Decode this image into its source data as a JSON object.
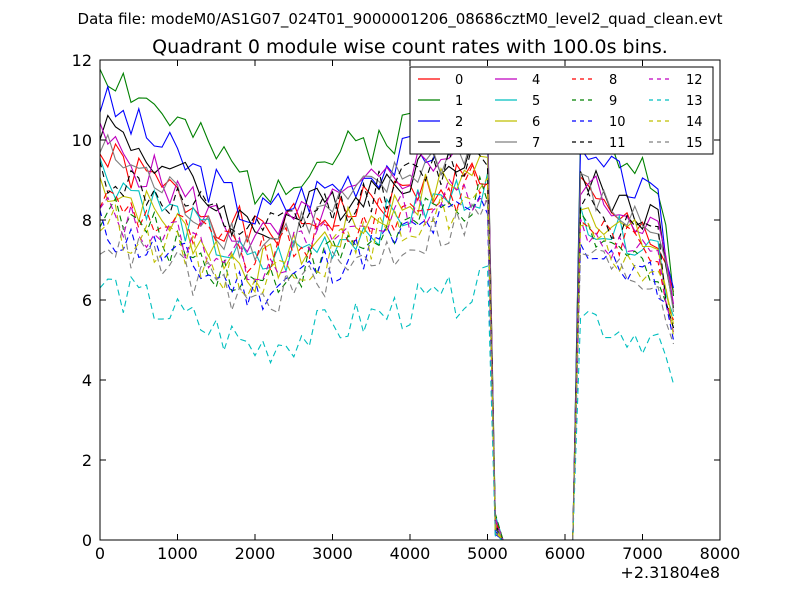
{
  "header": {
    "suptitle": "Data file: modeM0/AS1G07_024T01_9000001206_08686cztM0_level2_quad_clean.evt"
  },
  "chart_data": {
    "type": "line",
    "title": "Quadrant 0 module wise count rates with 100.0s bins.",
    "xlabel": "",
    "ylabel": "",
    "x_offset_label": "+2.31804e8",
    "xlim": [
      0,
      8000
    ],
    "ylim": [
      0,
      12
    ],
    "xticks": [
      0,
      1000,
      2000,
      3000,
      4000,
      5000,
      6000,
      7000,
      8000
    ],
    "xtick_labels": [
      "0",
      "1000",
      "2000",
      "3000",
      "4000",
      "5000",
      "6000",
      "7000",
      "8000"
    ],
    "yticks": [
      0,
      2,
      4,
      6,
      8,
      10,
      12
    ],
    "ytick_labels": [
      "0",
      "2",
      "4",
      "6",
      "8",
      "10",
      "12"
    ],
    "grid": false,
    "legend_position": "top-right",
    "legend_columns": 4,
    "segments": [
      {
        "x_start": 0,
        "x_end": 5000,
        "step": 100
      },
      {
        "x_start": 6200,
        "x_end": 7400,
        "step": 100
      }
    ],
    "drop_points": [
      5100,
      5200,
      6100
    ],
    "series": [
      {
        "name": "0",
        "color": "#ff0000",
        "dash": "solid",
        "base": 9.6,
        "mid": 7.6,
        "end": 9.2,
        "seg2": [
          8.8,
          8.0,
          7.6,
          6.2
        ],
        "seed": 1
      },
      {
        "name": "1",
        "color": "#008000",
        "dash": "solid",
        "base": 11.9,
        "mid": 8.8,
        "end": 11.1,
        "seg2": [
          10.2,
          9.6,
          9.1,
          6.1
        ],
        "seed": 2
      },
      {
        "name": "2",
        "color": "#0000ff",
        "dash": "solid",
        "base": 11.0,
        "mid": 8.1,
        "end": 10.4,
        "seg2": [
          9.4,
          9.2,
          8.4,
          6.3
        ],
        "seed": 3
      },
      {
        "name": "3",
        "color": "#000000",
        "dash": "solid",
        "base": 10.5,
        "mid": 7.7,
        "end": 10.0,
        "seg2": [
          9.2,
          8.6,
          8.0,
          5.8
        ],
        "seed": 4
      },
      {
        "name": "4",
        "color": "#bf00bf",
        "dash": "solid",
        "base": 10.0,
        "mid": 7.4,
        "end": 10.2,
        "seg2": [
          9.0,
          8.4,
          7.8,
          5.9
        ],
        "seed": 5
      },
      {
        "name": "5",
        "color": "#00bfbf",
        "dash": "solid",
        "base": 9.3,
        "mid": 6.8,
        "end": 8.9,
        "seg2": [
          8.2,
          7.7,
          7.4,
          5.6
        ],
        "seed": 6
      },
      {
        "name": "6",
        "color": "#bfbf00",
        "dash": "solid",
        "base": 9.0,
        "mid": 6.7,
        "end": 9.4,
        "seg2": [
          8.5,
          7.9,
          7.3,
          5.4
        ],
        "seed": 7
      },
      {
        "name": "7",
        "color": "#808080",
        "dash": "solid",
        "base": 9.8,
        "mid": 7.3,
        "end": 10.1,
        "seg2": [
          8.9,
          8.2,
          7.8,
          5.7
        ],
        "seed": 8
      },
      {
        "name": "8",
        "color": "#ff0000",
        "dash": "dashed",
        "base": 8.6,
        "mid": 7.0,
        "end": 9.0,
        "seg2": [
          8.1,
          7.6,
          7.2,
          5.5
        ],
        "seed": 9
      },
      {
        "name": "9",
        "color": "#008000",
        "dash": "dashed",
        "base": 8.3,
        "mid": 6.4,
        "end": 8.6,
        "seg2": [
          7.8,
          7.2,
          6.8,
          5.3
        ],
        "seed": 10
      },
      {
        "name": "10",
        "color": "#0000ff",
        "dash": "dashed",
        "base": 7.8,
        "mid": 6.2,
        "end": 8.4,
        "seg2": [
          7.4,
          6.9,
          6.5,
          5.0
        ],
        "seed": 11
      },
      {
        "name": "11",
        "color": "#000000",
        "dash": "dashed",
        "base": 9.2,
        "mid": 7.6,
        "end": 9.7,
        "seg2": [
          8.7,
          8.0,
          7.5,
          5.3
        ],
        "seed": 12
      },
      {
        "name": "12",
        "color": "#bf00bf",
        "dash": "dashed",
        "base": 8.2,
        "mid": 6.9,
        "end": 8.9,
        "seg2": [
          7.9,
          7.4,
          7.0,
          5.2
        ],
        "seed": 13
      },
      {
        "name": "13",
        "color": "#00bfbf",
        "dash": "dashed",
        "base": 6.4,
        "mid": 4.8,
        "end": 6.3,
        "seg2": [
          5.8,
          5.3,
          5.0,
          3.9
        ],
        "seed": 14
      },
      {
        "name": "14",
        "color": "#bfbf00",
        "dash": "dashed",
        "base": 8.0,
        "mid": 6.5,
        "end": 8.6,
        "seg2": [
          7.6,
          7.1,
          6.7,
          5.1
        ],
        "seed": 15
      },
      {
        "name": "15",
        "color": "#808080",
        "dash": "dashed",
        "base": 7.6,
        "mid": 5.9,
        "end": 8.2,
        "seg2": [
          7.3,
          6.8,
          6.4,
          4.9
        ],
        "seed": 16
      }
    ]
  }
}
